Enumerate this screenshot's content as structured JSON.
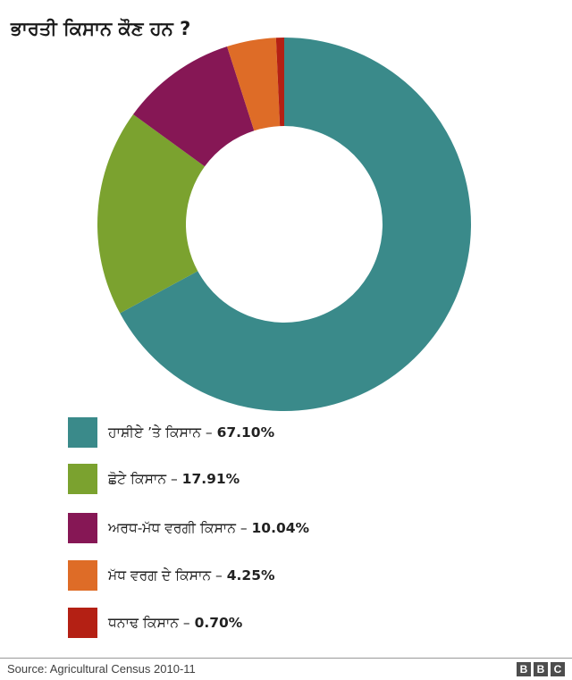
{
  "title": "ਭਾਰਤੀ ਕਿਸਾਨ ਕੌਣ ਹਨ ?",
  "chart_data": {
    "type": "pie",
    "donut": true,
    "title": "ਭਾਰਤੀ ਕਿਸਾਨ ਕੌਣ ਹਨ ?",
    "categories": [
      "ਹਾਸ਼ੀਏ ’ਤੇ ਕਿਸਾਨ",
      "ਛੋਟੇ ਕਿਸਾਨ",
      "ਅਰਧ-ਮੱਧ ਵਰਗੀ ਕਿਸਾਨ",
      "ਮੱਧ ਵਰਗ ਦੇ ਕਿਸਾਨ",
      "ਧਨਾਢ ਕਿਸਾਨ"
    ],
    "values": [
      67.1,
      17.91,
      10.04,
      4.25,
      0.7
    ],
    "value_labels": [
      "67.10%",
      "17.91%",
      "10.04%",
      "4.25%",
      "0.70%"
    ],
    "colors": [
      "#3a8a8a",
      "#7ba22f",
      "#861755",
      "#de6c27",
      "#b42014"
    ],
    "start": "top",
    "direction": "clockwise",
    "legend_position": "bottom-left"
  },
  "footer": {
    "source": "Source: Agricultural Census 2010-11",
    "logo_letters": [
      "B",
      "B",
      "C"
    ]
  }
}
